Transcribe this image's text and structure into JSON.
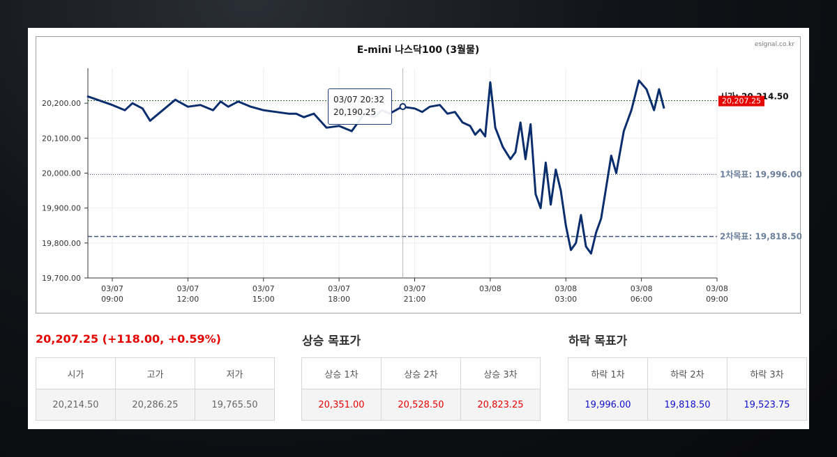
{
  "chart_data": {
    "type": "line",
    "title": "E-mini 나스닥100 (3월물)",
    "source": "esignal.co.kr",
    "ylim": [
      19700,
      20300
    ],
    "y_ticks": [
      "20,200.00",
      "20,100.00",
      "20,000.00",
      "19,900.00",
      "19,800.00",
      "19,700.00"
    ],
    "y_tick_values": [
      20200,
      20100,
      20000,
      19900,
      19800,
      19700
    ],
    "x_ticks": [
      {
        "date": "03/07",
        "time": "09:00"
      },
      {
        "date": "03/07",
        "time": "12:00"
      },
      {
        "date": "03/07",
        "time": "15:00"
      },
      {
        "date": "03/07",
        "time": "18:00"
      },
      {
        "date": "03/07",
        "time": "21:00"
      },
      {
        "date": "03/08",
        "time": ""
      },
      {
        "date": "03/08",
        "time": "03:00"
      },
      {
        "date": "03/08",
        "time": "06:00"
      },
      {
        "date": "03/08",
        "time": "09:00"
      }
    ],
    "x_hours": [
      -1,
      0,
      0.5,
      0.8,
      1.2,
      1.5,
      2.0,
      2.5,
      3.0,
      3.5,
      4.0,
      4.3,
      4.6,
      5.0,
      5.5,
      6.0,
      6.5,
      7.0,
      7.3,
      7.6,
      8.0,
      8.5,
      9.0,
      9.5,
      10.0,
      10.4,
      10.7,
      11.0,
      11.5,
      12.0,
      12.3,
      12.6,
      13.0,
      13.3,
      13.6,
      13.9,
      14.2,
      14.4,
      14.6,
      14.8,
      15.0,
      15.2,
      15.5,
      15.8,
      16.0,
      16.2,
      16.4,
      16.6,
      16.8,
      17.0,
      17.2,
      17.4,
      17.6,
      17.8,
      18.0,
      18.2,
      18.4,
      18.6,
      18.8,
      19.0,
      19.2,
      19.4,
      19.6,
      19.8,
      20.0,
      20.3,
      20.6,
      20.9,
      21.2,
      21.5,
      21.7,
      21.9
    ],
    "values": [
      20220,
      20195,
      20180,
      20200,
      20185,
      20150,
      20180,
      20210,
      20190,
      20195,
      20180,
      20205,
      20190,
      20205,
      20190,
      20180,
      20175,
      20170,
      20170,
      20160,
      20170,
      20130,
      20135,
      20120,
      20170,
      20160,
      20180,
      20170,
      20190,
      20185,
      20175,
      20190,
      20195,
      20170,
      20175,
      20145,
      20135,
      20110,
      20125,
      20105,
      20260,
      20130,
      20075,
      20040,
      20060,
      20145,
      20040,
      20140,
      19940,
      19900,
      20030,
      19910,
      20010,
      19950,
      19850,
      19780,
      19800,
      19880,
      19790,
      19770,
      19830,
      19870,
      19960,
      20050,
      20000,
      20120,
      20180,
      20265,
      20240,
      20180,
      20240,
      20185
    ],
    "last_index": 71,
    "current_value": "20,207.25",
    "current_line_value": 20207.25,
    "open_label": "시가: 20,214.50",
    "target_lines": [
      {
        "label": "1차목표: 19,996.00",
        "value": 19996.0,
        "style": "dotted"
      },
      {
        "label": "2차목표: 19,818.50",
        "value": 19818.5,
        "style": "dashed"
      }
    ],
    "tooltip": {
      "date": "03/07 20:32",
      "value": "20,190.25"
    },
    "line_color": "#0a2d6e",
    "grid": true
  },
  "summary": {
    "price_change": "20,207.25 (+118.00, +0.59%)",
    "headers": [
      "시가",
      "고가",
      "저가"
    ],
    "values": [
      "20,214.50",
      "20,286.25",
      "19,765.50"
    ]
  },
  "up_targets": {
    "title": "상승 목표가",
    "headers": [
      "상승 1차",
      "상승 2차",
      "상승 3차"
    ],
    "values": [
      "20,351.00",
      "20,528.50",
      "20,823.25"
    ]
  },
  "down_targets": {
    "title": "하락 목표가",
    "headers": [
      "하락 1차",
      "하락 2차",
      "하락 3차"
    ],
    "values": [
      "19,996.00",
      "19,818.50",
      "19,523.75"
    ]
  },
  "colors": {
    "up": "#e60000",
    "down": "#1010d0",
    "current_badge": "#e60000"
  }
}
